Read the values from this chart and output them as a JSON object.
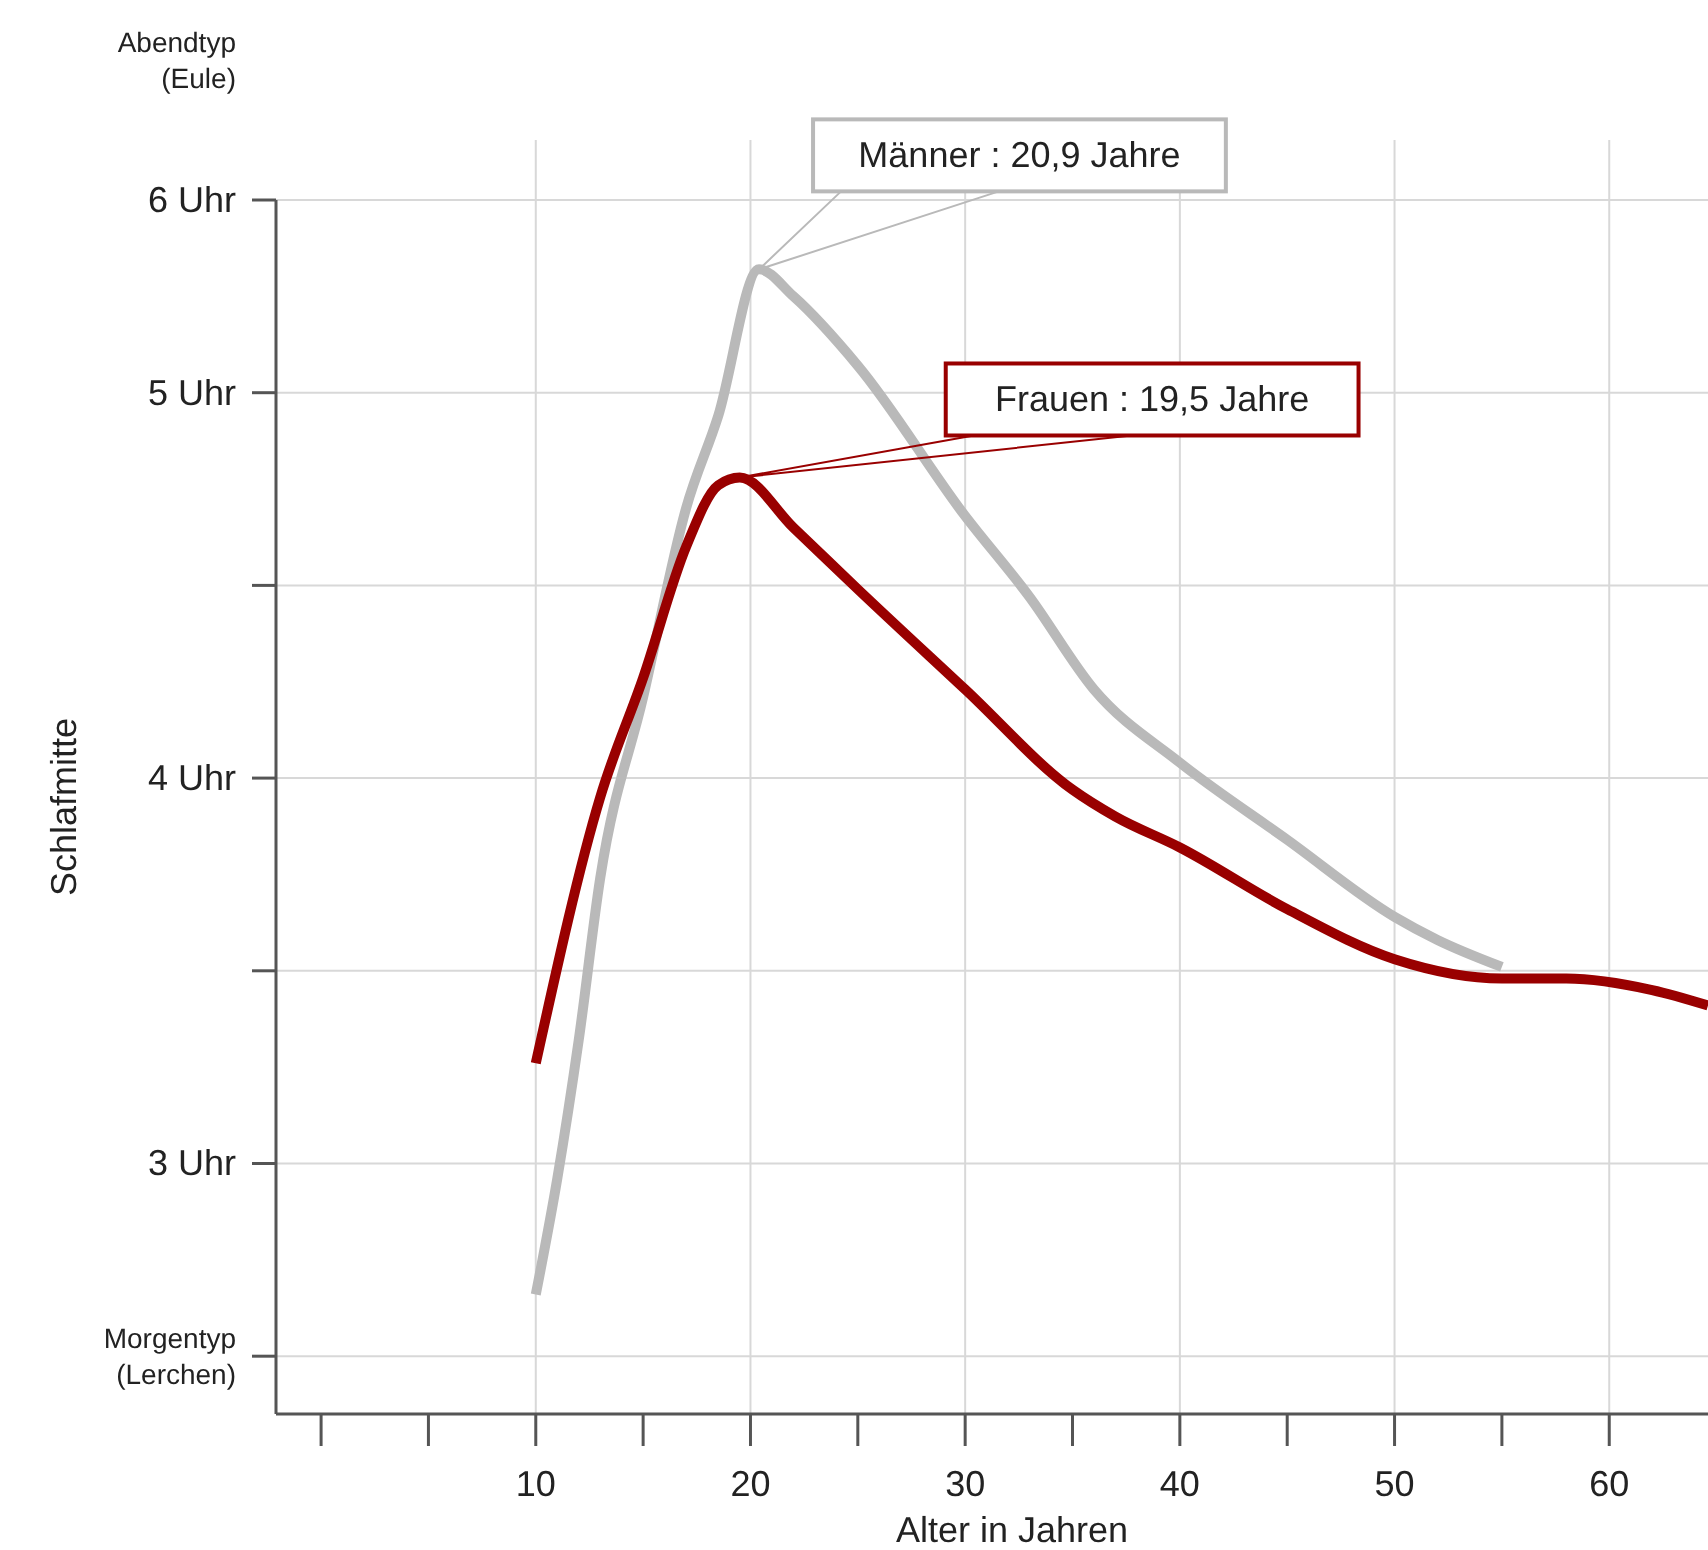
{
  "chart_data": {
    "type": "line",
    "xlabel": "Alter in Jahren",
    "ylabel": "Schlafmitte",
    "xlim": [
      -2.1,
      64.6
    ],
    "ylim": [
      2.35,
      5.5
    ],
    "xticks": [
      {
        "value": 0,
        "label": null
      },
      {
        "value": 5,
        "label": null
      },
      10,
      {
        "value": 15,
        "label": null
      },
      20,
      {
        "value": 25,
        "label": null
      },
      30,
      {
        "value": 35,
        "label": null
      },
      40,
      {
        "value": 45,
        "label": null
      },
      50,
      {
        "value": 55,
        "label": null
      },
      60
    ],
    "yticks": [
      {
        "value": 2.5,
        "label": "Morgentyp (Lerchen)"
      },
      {
        "value": 3,
        "label": "3 Uhr"
      },
      {
        "value": 3.5,
        "label": null
      },
      {
        "value": 4,
        "label": "4 Uhr"
      },
      {
        "value": 4.5,
        "label": null
      },
      {
        "value": 5,
        "label": "5 Uhr"
      },
      {
        "value": 5.5,
        "label": "6 Uhr"
      }
    ],
    "grid": true,
    "line_style": "solid",
    "marker": "none",
    "series": [
      {
        "color": "#b9b9b9",
        "x": [
          10,
          11,
          12,
          13,
          15,
          17,
          18.5,
          20.4,
          22,
          25,
          30,
          33,
          36,
          40,
          45,
          50,
          52,
          55
        ],
        "values": [
          2.66,
          2.96,
          3.32,
          3.74,
          4.21,
          4.7,
          4.94,
          5.32,
          5.25,
          5.07,
          4.68,
          4.47,
          4.23,
          4.04,
          3.84,
          3.64,
          3.58,
          3.51
        ]
      },
      {
        "color": "#990000",
        "x": [
          10,
          13,
          15,
          17,
          18.5,
          19.5,
          22,
          25,
          30,
          35,
          37,
          40,
          45,
          50,
          55,
          58,
          62,
          64.6
        ],
        "values": [
          3.26,
          3.95,
          4.26,
          4.6,
          4.76,
          4.78,
          4.65,
          4.49,
          4.23,
          3.97,
          3.9,
          3.82,
          3.66,
          3.53,
          3.48,
          3.48,
          3.45,
          3.41
        ]
      }
    ],
    "annotations": [
      "Männer : 20,9 Jahre",
      "Frauen : 19,5 Jahre",
      "Abendtyp (Eule)"
    ]
  }
}
